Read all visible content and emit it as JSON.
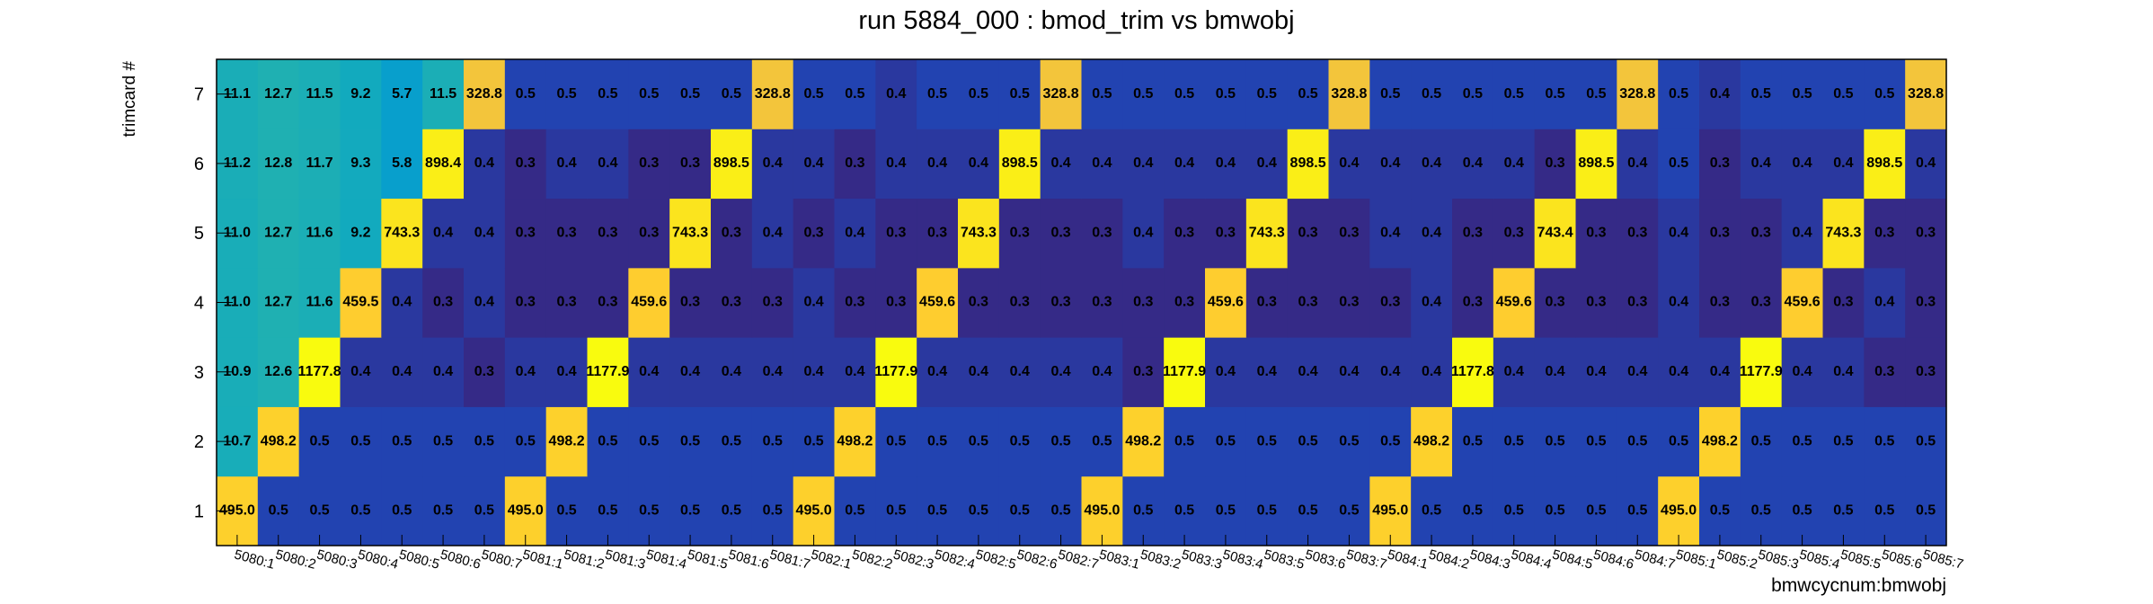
{
  "chart_data": {
    "type": "heatmap",
    "title": "run 5884_000 : bmod_trim vs bmwobj",
    "x_label": "bmwcycnum:bmwobj",
    "y_label": "trimcard #",
    "color_scale": "log",
    "x_categories": [
      "5080:1",
      "5080:2",
      "5080:3",
      "5080:4",
      "5080:5",
      "5080:6",
      "5080:7",
      "5081:1",
      "5081:2",
      "5081:3",
      "5081:4",
      "5081:5",
      "5081:6",
      "5081:7",
      "5082:1",
      "5082:2",
      "5082:3",
      "5082:4",
      "5082:5",
      "5082:6",
      "5082:7",
      "5083:1",
      "5083:2",
      "5083:3",
      "5083:4",
      "5083:5",
      "5083:6",
      "5083:7",
      "5084:1",
      "5084:2",
      "5084:3",
      "5084:4",
      "5084:5",
      "5084:6",
      "5084:7",
      "5085:1",
      "5085:2",
      "5085:3",
      "5085:4",
      "5085:5",
      "5085:6",
      "5085:7"
    ],
    "y_categories": [
      1,
      2,
      3,
      4,
      5,
      6,
      7
    ],
    "values": [
      [
        495.0,
        0.5,
        0.5,
        0.5,
        0.5,
        0.5,
        0.5,
        495.0,
        0.5,
        0.5,
        0.5,
        0.5,
        0.5,
        0.5,
        495.0,
        0.5,
        0.5,
        0.5,
        0.5,
        0.5,
        0.5,
        495.0,
        0.5,
        0.5,
        0.5,
        0.5,
        0.5,
        0.5,
        495.0,
        0.5,
        0.5,
        0.5,
        0.5,
        0.5,
        0.5,
        495.0,
        0.5,
        0.5,
        0.5,
        0.5,
        0.5,
        0.5
      ],
      [
        10.7,
        498.2,
        0.5,
        0.5,
        0.5,
        0.5,
        0.5,
        0.5,
        498.2,
        0.5,
        0.5,
        0.5,
        0.5,
        0.5,
        0.5,
        498.2,
        0.5,
        0.5,
        0.5,
        0.5,
        0.5,
        0.5,
        498.2,
        0.5,
        0.5,
        0.5,
        0.5,
        0.5,
        0.5,
        498.2,
        0.5,
        0.5,
        0.5,
        0.5,
        0.5,
        0.5,
        498.2,
        0.5,
        0.5,
        0.5,
        0.5,
        0.5
      ],
      [
        10.9,
        12.6,
        1177.8,
        0.4,
        0.4,
        0.4,
        0.3,
        0.4,
        0.4,
        1177.9,
        0.4,
        0.4,
        0.4,
        0.4,
        0.4,
        0.4,
        1177.9,
        0.4,
        0.4,
        0.4,
        0.4,
        0.4,
        0.3,
        1177.9,
        0.4,
        0.4,
        0.4,
        0.4,
        0.4,
        0.4,
        1177.8,
        0.4,
        0.4,
        0.4,
        0.4,
        0.4,
        0.4,
        1177.9,
        0.4,
        0.4,
        0.3,
        0.3
      ],
      [
        11.0,
        12.7,
        11.6,
        459.5,
        0.4,
        0.3,
        0.4,
        0.3,
        0.3,
        0.3,
        459.6,
        0.3,
        0.3,
        0.3,
        0.4,
        0.3,
        0.3,
        459.6,
        0.3,
        0.3,
        0.3,
        0.3,
        0.3,
        0.3,
        459.6,
        0.3,
        0.3,
        0.3,
        0.3,
        0.4,
        0.3,
        459.6,
        0.3,
        0.3,
        0.3,
        0.4,
        0.3,
        0.3,
        459.6,
        0.3,
        0.4,
        0.3
      ],
      [
        11.0,
        12.7,
        11.6,
        9.2,
        743.3,
        0.4,
        0.4,
        0.3,
        0.3,
        0.3,
        0.3,
        743.3,
        0.3,
        0.4,
        0.3,
        0.4,
        0.3,
        0.3,
        743.3,
        0.3,
        0.3,
        0.3,
        0.4,
        0.3,
        0.3,
        743.3,
        0.3,
        0.3,
        0.4,
        0.4,
        0.3,
        0.3,
        743.4,
        0.3,
        0.3,
        0.4,
        0.3,
        0.3,
        0.4,
        743.3,
        0.3,
        0.3
      ],
      [
        11.2,
        12.8,
        11.7,
        9.3,
        5.8,
        898.4,
        0.4,
        0.3,
        0.4,
        0.4,
        0.3,
        0.3,
        898.5,
        0.4,
        0.4,
        0.3,
        0.4,
        0.4,
        0.4,
        898.5,
        0.4,
        0.4,
        0.4,
        0.4,
        0.4,
        0.4,
        898.5,
        0.4,
        0.4,
        0.4,
        0.4,
        0.4,
        0.3,
        898.5,
        0.4,
        0.5,
        0.3,
        0.4,
        0.4,
        0.4,
        898.5,
        0.4
      ],
      [
        11.1,
        12.7,
        11.5,
        9.2,
        5.7,
        11.5,
        328.8,
        0.5,
        0.5,
        0.5,
        0.5,
        0.5,
        0.5,
        328.8,
        0.5,
        0.5,
        0.4,
        0.5,
        0.5,
        0.5,
        328.8,
        0.5,
        0.5,
        0.5,
        0.5,
        0.5,
        0.5,
        328.8,
        0.5,
        0.5,
        0.5,
        0.5,
        0.5,
        0.5,
        328.8,
        0.5,
        0.4,
        0.5,
        0.5,
        0.5,
        0.5,
        328.8
      ]
    ],
    "value_labels": [
      [
        "495.0",
        "0.5",
        "0.5",
        "0.5",
        "0.5",
        "0.5",
        "0.5",
        "495.0",
        "0.5",
        "0.5",
        "0.5",
        "0.5",
        "0.5",
        "0.5",
        "495.0",
        "0.5",
        "0.5",
        "0.5",
        "0.5",
        "0.5",
        "0.5",
        "495.0",
        "0.5",
        "0.5",
        "0.5",
        "0.5",
        "0.5",
        "0.5",
        "495.0",
        "0.5",
        "0.5",
        "0.5",
        "0.5",
        "0.5",
        "0.5",
        "495.0",
        "0.5",
        "0.5",
        "0.5",
        "0.5",
        "0.5",
        "0.5"
      ],
      [
        "10.7",
        "498.2",
        "0.5",
        "0.5",
        "0.5",
        "0.5",
        "0.5",
        "0.5",
        "498.2",
        "0.5",
        "0.5",
        "0.5",
        "0.5",
        "0.5",
        "0.5",
        "498.2",
        "0.5",
        "0.5",
        "0.5",
        "0.5",
        "0.5",
        "0.5",
        "498.2",
        "0.5",
        "0.5",
        "0.5",
        "0.5",
        "0.5",
        "0.5",
        "498.2",
        "0.5",
        "0.5",
        "0.5",
        "0.5",
        "0.5",
        "0.5",
        "498.2",
        "0.5",
        "0.5",
        "0.5",
        "0.5",
        "0.5"
      ],
      [
        "10.9",
        "12.6",
        "1177.8",
        "0.4",
        "0.4",
        "0.4",
        "0.3",
        "0.4",
        "0.4",
        "1177.9",
        "0.4",
        "0.4",
        "0.4",
        "0.4",
        "0.4",
        "0.4",
        "1177.9",
        "0.4",
        "0.4",
        "0.4",
        "0.4",
        "0.4",
        "0.3",
        "1177.9",
        "0.4",
        "0.4",
        "0.4",
        "0.4",
        "0.4",
        "0.4",
        "1177.8",
        "0.4",
        "0.4",
        "0.4",
        "0.4",
        "0.4",
        "0.4",
        "1177.9",
        "0.4",
        "0.4",
        "0.3",
        "0.3"
      ],
      [
        "11.0",
        "12.7",
        "11.6",
        "459.5",
        "0.4",
        "0.3",
        "0.4",
        "0.3",
        "0.3",
        "0.3",
        "459.6",
        "0.3",
        "0.3",
        "0.3",
        "0.4",
        "0.3",
        "0.3",
        "459.6",
        "0.3",
        "0.3",
        "0.3",
        "0.3",
        "0.3",
        "0.3",
        "459.6",
        "0.3",
        "0.3",
        "0.3",
        "0.3",
        "0.4",
        "0.3",
        "459.6",
        "0.3",
        "0.3",
        "0.3",
        "0.4",
        "0.3",
        "0.3",
        "459.6",
        "0.3",
        "0.4",
        "0.3"
      ],
      [
        "11.0",
        "12.7",
        "11.6",
        "9.2",
        "743.3",
        "0.4",
        "0.4",
        "0.3",
        "0.3",
        "0.3",
        "0.3",
        "743.3",
        "0.3",
        "0.4",
        "0.3",
        "0.4",
        "0.3",
        "0.3",
        "743.3",
        "0.3",
        "0.3",
        "0.3",
        "0.4",
        "0.3",
        "0.3",
        "743.3",
        "0.3",
        "0.3",
        "0.4",
        "0.4",
        "0.3",
        "0.3",
        "743.4",
        "0.3",
        "0.3",
        "0.4",
        "0.3",
        "0.3",
        "0.4",
        "743.3",
        "0.3",
        "0.3"
      ],
      [
        "11.2",
        "12.8",
        "11.7",
        "9.3",
        "5.8",
        "898.4",
        "0.4",
        "0.3",
        "0.4",
        "0.4",
        "0.3",
        "0.3",
        "898.5",
        "0.4",
        "0.4",
        "0.3",
        "0.4",
        "0.4",
        "0.4",
        "898.5",
        "0.4",
        "0.4",
        "0.4",
        "0.4",
        "0.4",
        "0.4",
        "898.5",
        "0.4",
        "0.4",
        "0.4",
        "0.4",
        "0.4",
        "0.3",
        "898.5",
        "0.4",
        "0.5",
        "0.3",
        "0.4",
        "0.4",
        "0.4",
        "898.5",
        "0.4"
      ],
      [
        "11.1",
        "12.7",
        "11.5",
        "9.2",
        "5.7",
        "11.5",
        "328.8",
        "0.5",
        "0.5",
        "0.5",
        "0.5",
        "0.5",
        "0.5",
        "328.8",
        "0.5",
        "0.5",
        "0.4",
        "0.5",
        "0.5",
        "0.5",
        "328.8",
        "0.5",
        "0.5",
        "0.5",
        "0.5",
        "0.5",
        "0.5",
        "328.8",
        "0.5",
        "0.5",
        "0.5",
        "0.5",
        "0.5",
        "0.5",
        "328.8",
        "0.5",
        "0.4",
        "0.5",
        "0.5",
        "0.5",
        "0.5",
        "328.8"
      ]
    ]
  }
}
